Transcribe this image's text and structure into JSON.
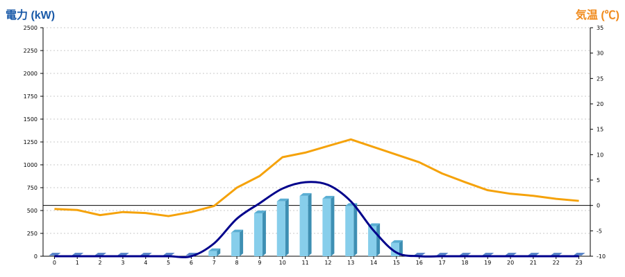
{
  "chart_data": {
    "type": "bar",
    "title_left": "電力 (kW)",
    "title_right": "気温 (℃)",
    "categories": [
      "0",
      "1",
      "2",
      "3",
      "4",
      "5",
      "6",
      "7",
      "8",
      "9",
      "10",
      "11",
      "12",
      "13",
      "14",
      "15",
      "16",
      "17",
      "18",
      "19",
      "20",
      "21",
      "22",
      "23"
    ],
    "y_left": {
      "ylim": [
        0,
        2500
      ],
      "ticks": [
        "0",
        "250",
        "500",
        "750",
        "1000",
        "1250",
        "1500",
        "1750",
        "2000",
        "2250",
        "2500"
      ]
    },
    "y_right": {
      "ylim": [
        -10,
        35
      ],
      "ticks": [
        "-10",
        "-5",
        "0",
        "5",
        "10",
        "15",
        "20",
        "25",
        "30",
        "35"
      ]
    },
    "reference_line_right": 0,
    "grid": true,
    "series": [
      {
        "kind": "bar",
        "axis": "left",
        "color": "#87ceeb",
        "values": [
          0,
          0,
          0,
          0,
          0,
          0,
          0,
          55,
          260,
          470,
          600,
          660,
          630,
          550,
          330,
          145,
          0,
          0,
          0,
          0,
          0,
          0,
          0,
          0
        ]
      },
      {
        "kind": "line",
        "axis": "left",
        "color": "#00008b",
        "values": [
          0,
          0,
          0,
          0,
          0,
          0,
          0,
          140,
          410,
          580,
          740,
          810,
          780,
          600,
          280,
          40,
          0,
          0,
          0,
          0,
          0,
          0,
          0,
          0
        ]
      },
      {
        "kind": "line",
        "axis": "right",
        "color": "#f5a20a",
        "values": [
          -0.7,
          -0.9,
          -1.9,
          -1.3,
          -1.5,
          -2.1,
          -1.3,
          -0.1,
          3.5,
          5.8,
          9.5,
          10.4,
          11.7,
          13.0,
          11.5,
          10.0,
          8.5,
          6.3,
          4.6,
          3.0,
          2.3,
          1.9,
          1.3,
          0.9
        ]
      }
    ]
  }
}
